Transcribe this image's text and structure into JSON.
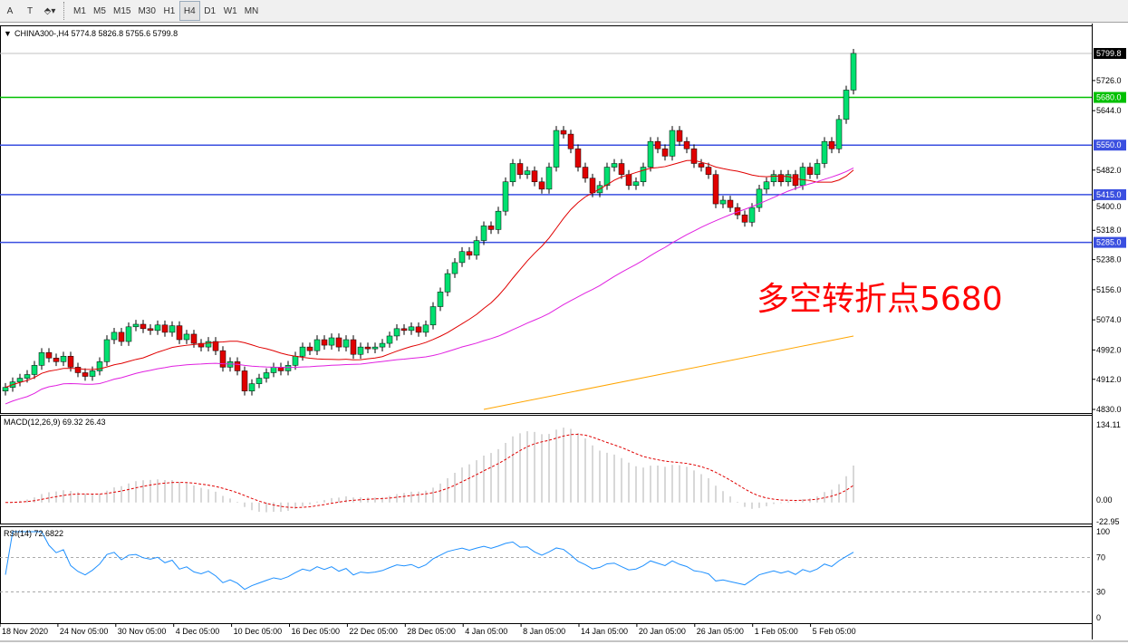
{
  "toolbar": {
    "tools": [
      "A",
      "T",
      "⬘▾"
    ],
    "timeframes": [
      "M1",
      "M5",
      "M15",
      "M30",
      "H1",
      "H4",
      "D1",
      "W1",
      "MN"
    ],
    "active": "H4"
  },
  "chart_data": [
    {
      "type": "candlestick",
      "title": "CHINA300-,H4  5774.8 5826.8 5755.6 5799.8",
      "ylim": [
        4830,
        5799.8
      ],
      "yticks": [
        "5726.0",
        "5644.0",
        "5482.0",
        "5400.0",
        "5318.0",
        "5238.0",
        "5156.0",
        "5074.0",
        "4992.0",
        "4912.0",
        "4830.0"
      ],
      "ytick_values": [
        5726,
        5644,
        5482,
        5400,
        5318,
        5238,
        5156,
        5074,
        4992,
        4912,
        4830
      ],
      "price_label": "5799.8",
      "price": 5799.8,
      "levels": [
        {
          "value": 5680,
          "label": "5680.0",
          "color": "#00c000"
        },
        {
          "value": 5550,
          "label": "5550.0",
          "color": "#3a4fe0"
        },
        {
          "value": 5415,
          "label": "5415.0",
          "color": "#3a4fe0"
        },
        {
          "value": 5285,
          "label": "5285.0",
          "color": "#3a4fe0"
        }
      ],
      "annotation": "多空转折点5680",
      "first_open": 4880,
      "close": [
        4890,
        4905,
        4915,
        4925,
        4950,
        4985,
        4970,
        4960,
        4975,
        4945,
        4930,
        4920,
        4935,
        4960,
        5020,
        5040,
        5015,
        5055,
        5062,
        5050,
        5045,
        5060,
        5040,
        5058,
        5020,
        5035,
        5010,
        5000,
        5015,
        4990,
        4945,
        4960,
        4935,
        4880,
        4900,
        4915,
        4930,
        4945,
        4935,
        4950,
        4975,
        5000,
        4990,
        5020,
        5005,
        5025,
        5000,
        5020,
        4980,
        5000,
        4995,
        5000,
        5010,
        5030,
        5050,
        5045,
        5055,
        5040,
        5060,
        5110,
        5150,
        5200,
        5230,
        5260,
        5250,
        5290,
        5330,
        5320,
        5370,
        5450,
        5500,
        5470,
        5480,
        5450,
        5430,
        5490,
        5590,
        5580,
        5540,
        5490,
        5460,
        5420,
        5440,
        5490,
        5500,
        5470,
        5440,
        5450,
        5490,
        5560,
        5540,
        5520,
        5590,
        5560,
        5540,
        5500,
        5490,
        5470,
        5390,
        5400,
        5380,
        5360,
        5340,
        5380,
        5430,
        5450,
        5470,
        5450,
        5470,
        5440,
        5490,
        5470,
        5500,
        5560,
        5540,
        5620,
        5700,
        5800
      ],
      "ma": [
        {
          "period": 20,
          "color": "#e00000"
        },
        {
          "period": 50,
          "color": "#e020e0"
        }
      ],
      "ma_long": {
        "color": "#ffa500",
        "from_bar": 66,
        "from": 4830,
        "to": 5030
      },
      "bull_color": "#00e070",
      "bear_color": "#e00000"
    },
    {
      "type": "macd",
      "label": "MACD(12,26,9) 69.32 26.43",
      "ylim": [
        -22.95,
        134.11
      ],
      "yticks": [
        "134.11",
        "0.00",
        "-22.95"
      ],
      "params": [
        12,
        26,
        9
      ]
    },
    {
      "type": "rsi",
      "label": "RSI(14) 72.6822",
      "ylim": [
        0,
        100
      ],
      "yticks": [
        "100",
        "70",
        "30",
        "0"
      ],
      "levels": [
        70,
        30
      ],
      "period": 14
    }
  ],
  "time_axis": [
    "18 Nov 2020",
    "24 Nov 05:00",
    "30 Nov 05:00",
    "4 Dec 05:00",
    "10 Dec 05:00",
    "16 Dec 05:00",
    "22 Dec 05:00",
    "28 Dec 05:00",
    "4 Jan 05:00",
    "8 Jan 05:00",
    "14 Jan 05:00",
    "20 Jan 05:00",
    "26 Jan 05:00",
    "1 Feb 05:00",
    "5 Feb 05:00"
  ]
}
